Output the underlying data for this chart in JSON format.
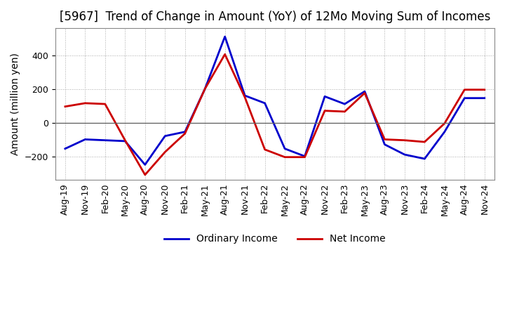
{
  "title": "[5967]  Trend of Change in Amount (YoY) of 12Mo Moving Sum of Incomes",
  "ylabel": "Amount (million yen)",
  "x_labels": [
    "Aug-19",
    "Nov-19",
    "Feb-20",
    "May-20",
    "Aug-20",
    "Nov-20",
    "Feb-21",
    "May-21",
    "Aug-21",
    "Nov-21",
    "Feb-22",
    "May-22",
    "Aug-22",
    "Nov-22",
    "Feb-23",
    "May-23",
    "Aug-23",
    "Nov-23",
    "Feb-24",
    "May-24",
    "Aug-24",
    "Nov-24"
  ],
  "ordinary_income": [
    -155,
    -100,
    -105,
    -110,
    -250,
    -80,
    -55,
    200,
    510,
    160,
    115,
    -155,
    -200,
    155,
    110,
    185,
    -130,
    -190,
    -215,
    -55,
    145,
    145
  ],
  "net_income": [
    95,
    115,
    110,
    -105,
    -310,
    -175,
    -65,
    200,
    405,
    150,
    -160,
    -205,
    -205,
    70,
    65,
    175,
    -100,
    -105,
    -115,
    -5,
    195,
    195
  ],
  "ylim": [
    -340,
    560
  ],
  "yticks": [
    -200,
    0,
    200,
    400
  ],
  "ordinary_color": "#0000cc",
  "net_color": "#cc0000",
  "background_color": "#ffffff",
  "grid_color": "#aaaaaa",
  "zero_line_color": "#666666",
  "title_fontsize": 12,
  "axis_label_fontsize": 10,
  "tick_fontsize": 9,
  "legend_fontsize": 10,
  "line_width": 2.0
}
